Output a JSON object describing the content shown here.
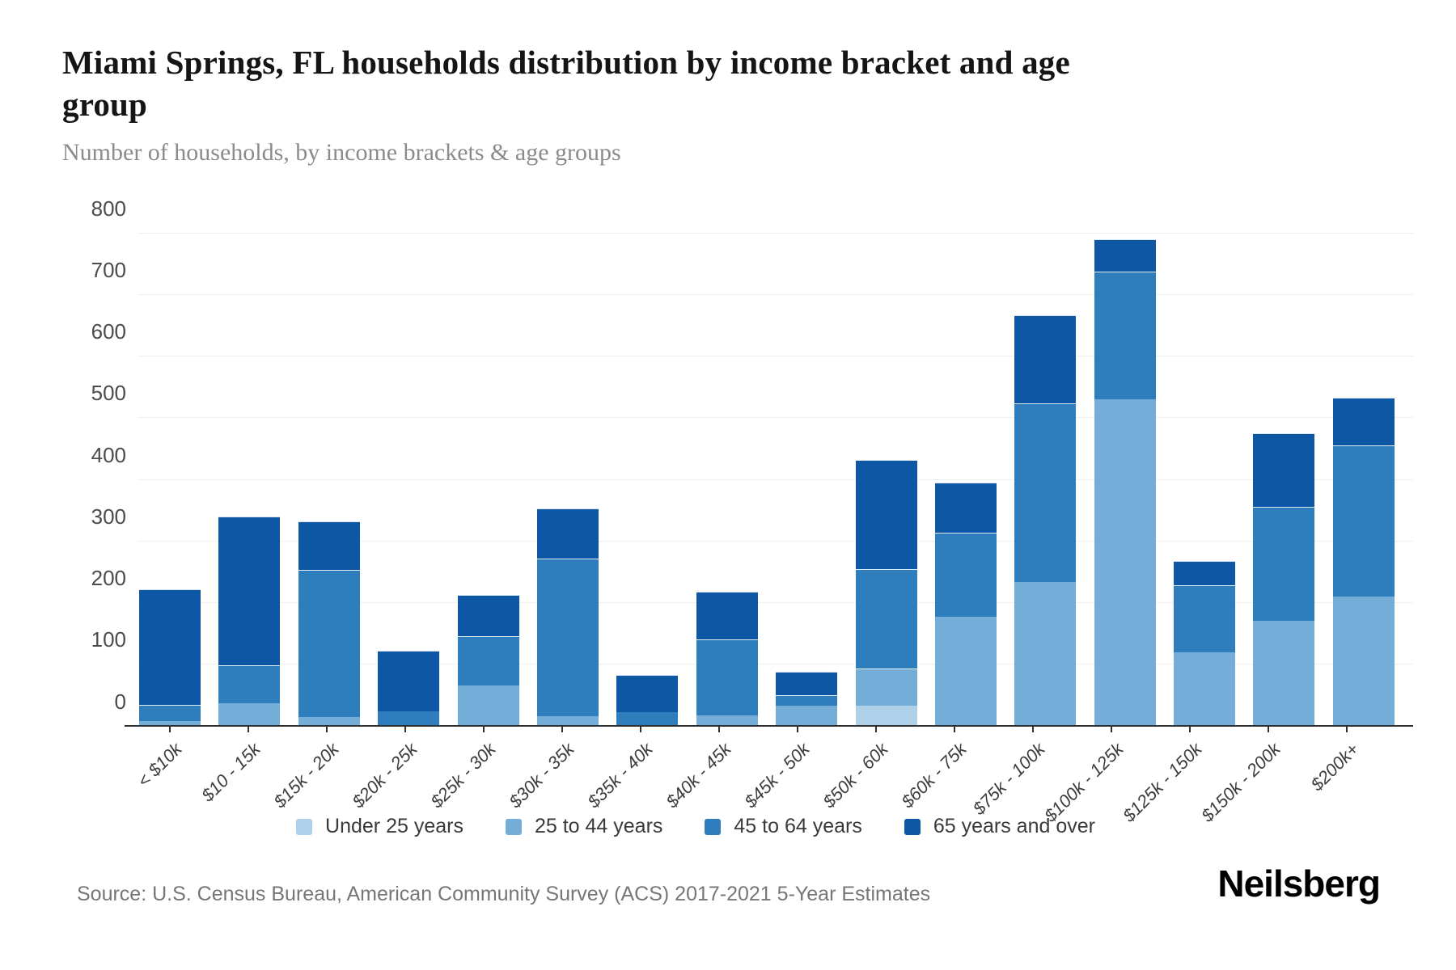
{
  "title": "Miami Springs, FL households distribution by income bracket and age group",
  "subtitle": "Number of households, by income brackets & age groups",
  "source": "Source: U.S. Census Bureau, American Community Survey (ACS) 2017-2021 5-Year Estimates",
  "logo": "Neilsberg",
  "legend": {
    "items": [
      "Under 25 years",
      "25 to 44 years",
      "45 to 64 years",
      "65 years and over"
    ]
  },
  "chart_data": {
    "type": "bar",
    "stacked": true,
    "title": "Miami Springs, FL households distribution by income bracket and age group",
    "xlabel": "",
    "ylabel": "Number of households",
    "ylim": [
      0,
      800
    ],
    "yticks": [
      0,
      100,
      200,
      300,
      400,
      500,
      600,
      700,
      800
    ],
    "grid": "horizontal",
    "legend_position": "bottom",
    "categories": [
      "< $10k",
      "$10 - 15k",
      "$15k - 20k",
      "$20k - 25k",
      "$25k - 30k",
      "$30k - 35k",
      "$35k - 40k",
      "$40k - 45k",
      "$45k - 50k",
      "$50k - 60k",
      "$60k - 75k",
      "$75k - 100k",
      "$100k - 125k",
      "$125k - 150k",
      "$150k - 200k",
      "$200k+"
    ],
    "series": [
      {
        "name": "Under 25 years",
        "color": "#aed0e8",
        "values": [
          0,
          0,
          0,
          0,
          0,
          0,
          0,
          0,
          0,
          33,
          0,
          0,
          0,
          0,
          0,
          0
        ]
      },
      {
        "name": "25 to 44 years",
        "color": "#74aed8",
        "values": [
          8,
          37,
          14,
          0,
          65,
          16,
          0,
          17,
          33,
          60,
          177,
          233,
          530,
          120,
          170,
          210
        ]
      },
      {
        "name": "45 to 64 years",
        "color": "#2e7ebd",
        "values": [
          26,
          62,
          239,
          23,
          81,
          255,
          22,
          123,
          17,
          162,
          137,
          290,
          207,
          108,
          185,
          245
        ]
      },
      {
        "name": "65 years and over",
        "color": "#0d57a5",
        "values": [
          188,
          241,
          79,
          99,
          66,
          82,
          60,
          78,
          38,
          177,
          81,
          143,
          53,
          39,
          120,
          78
        ]
      }
    ]
  }
}
